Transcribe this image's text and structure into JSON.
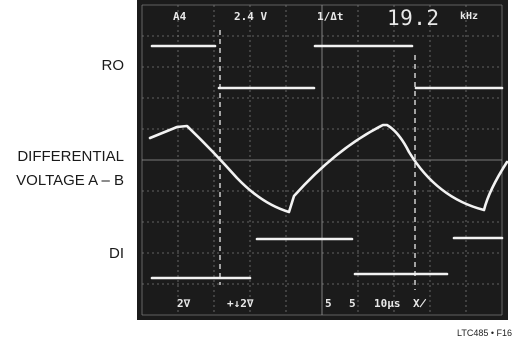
{
  "labels": {
    "ro": "RO",
    "differential_line1": "DIFFERENTIAL",
    "differential_line2": "VOLTAGE A – B",
    "di": "DI",
    "figure_id": "LTC485 • F16"
  },
  "scope": {
    "header": {
      "channel": "A4",
      "volts": "2.4 V",
      "function": "1/Δt",
      "frequency": "19.2",
      "frequency_unit": "kHz"
    },
    "footer": {
      "ch1_scale": "2∇",
      "ch2_scale": "+↓2∇",
      "scale_a": "5",
      "scale_b": "5",
      "timebase": "10µs",
      "trigger": "Х̸"
    },
    "colors": {
      "screen": "#1b1b1b",
      "grid": "#7a7a7a",
      "trace": "#f2f2f2"
    }
  }
}
